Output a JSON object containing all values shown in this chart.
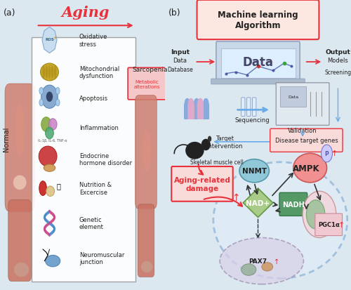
{
  "bg_color": "#dce8f0",
  "panel_a_label": "(a)",
  "panel_b_label": "(b)",
  "panel_a_title": "Aging",
  "panel_b_title": "Machine learning\nAlgorithm",
  "normal_label": "Normal",
  "sarcopenia_label": "Sarcopenia",
  "metabolic_label": "Metabolic\nalterations",
  "panel_a_items": [
    "Oxidative\nstress",
    "Mitochondrial\ndysfunction",
    "Apoptosis",
    "Inflammation",
    "Endocrine\nhormone disorder",
    "Nutrition &\nExcercise",
    "Genetic\nelement",
    "Neuromuscular\njunction"
  ],
  "red_color": "#e8313a",
  "light_red": "#f9dcd9",
  "pink_color": "#f4c8c8",
  "arrow_blue": "#6aabe8",
  "text_dark": "#222222",
  "ml_box_color": "#fce8e0",
  "input_label": "Input",
  "output_label": "Output",
  "data_label": "Data",
  "database_label": "Database",
  "models_label": "Models",
  "screening_label": "Screening",
  "sequencing_label": "Sequencing",
  "validation_label": "Validation",
  "target_label": "Target\nintervention",
  "disease_label": "Disease target genes",
  "skeletal_label": "Skeletal muscle cell",
  "aging_label": "Aging-related\ndamage",
  "pax7_label": "PAX7",
  "nnmt_label": "NNMT",
  "ampk_label": "AMPK",
  "nad_label": "NAD+",
  "nadh_label": "NADH",
  "pgc1_label": "PGC1α",
  "p_label": "P",
  "icon_colors": [
    "#a8c8e8",
    "#d4a820",
    "#88aacc",
    "#cc88bb",
    "#c04040",
    "#cc8820",
    "#4488bb",
    "#cc7755"
  ],
  "icon_labels": [
    "ROS",
    "",
    "",
    "",
    "",
    "",
    "",
    ""
  ]
}
